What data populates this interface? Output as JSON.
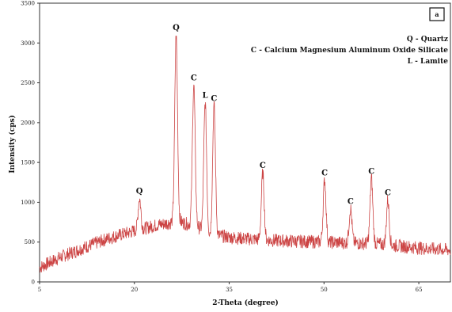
{
  "chart_data": {
    "type": "line",
    "panel_label": "a",
    "xlabel": "2-Theta (degree)",
    "ylabel": "Intensity (cps)",
    "xlim": [
      5,
      70
    ],
    "ylim": [
      0,
      3500
    ],
    "x_ticks": [
      5,
      20,
      35,
      50,
      65
    ],
    "y_ticks": [
      0,
      500,
      1000,
      1500,
      2000,
      2500,
      3000,
      3500
    ],
    "grid": false,
    "legend_position": "top-right",
    "legend": [
      "Q - Quartz",
      "C - Calcium Magnesium Aluminum Oxide Silicate",
      "L - Lamite"
    ],
    "series_color": "#cc4444",
    "baseline": [
      [
        5,
        180
      ],
      [
        8,
        300
      ],
      [
        12,
        430
      ],
      [
        16,
        550
      ],
      [
        20,
        640
      ],
      [
        24,
        720
      ],
      [
        27,
        760
      ],
      [
        30,
        690
      ],
      [
        32,
        600
      ],
      [
        35,
        560
      ],
      [
        38,
        540
      ],
      [
        42,
        520
      ],
      [
        46,
        510
      ],
      [
        50,
        500
      ],
      [
        54,
        490
      ],
      [
        58,
        480
      ],
      [
        62,
        450
      ],
      [
        66,
        420
      ],
      [
        70,
        400
      ]
    ],
    "peaks": [
      {
        "x": 20.8,
        "y": 1050,
        "label": "Q"
      },
      {
        "x": 26.6,
        "y": 3100,
        "label": "Q"
      },
      {
        "x": 29.4,
        "y": 2470,
        "label": "C"
      },
      {
        "x": 31.2,
        "y": 2250,
        "label": "L"
      },
      {
        "x": 32.6,
        "y": 2210,
        "label": "C"
      },
      {
        "x": 40.3,
        "y": 1370,
        "label": "C"
      },
      {
        "x": 50.1,
        "y": 1280,
        "label": "C"
      },
      {
        "x": 54.2,
        "y": 920,
        "label": "C"
      },
      {
        "x": 57.5,
        "y": 1300,
        "label": "C"
      },
      {
        "x": 60.1,
        "y": 1030,
        "label": "C"
      }
    ]
  }
}
